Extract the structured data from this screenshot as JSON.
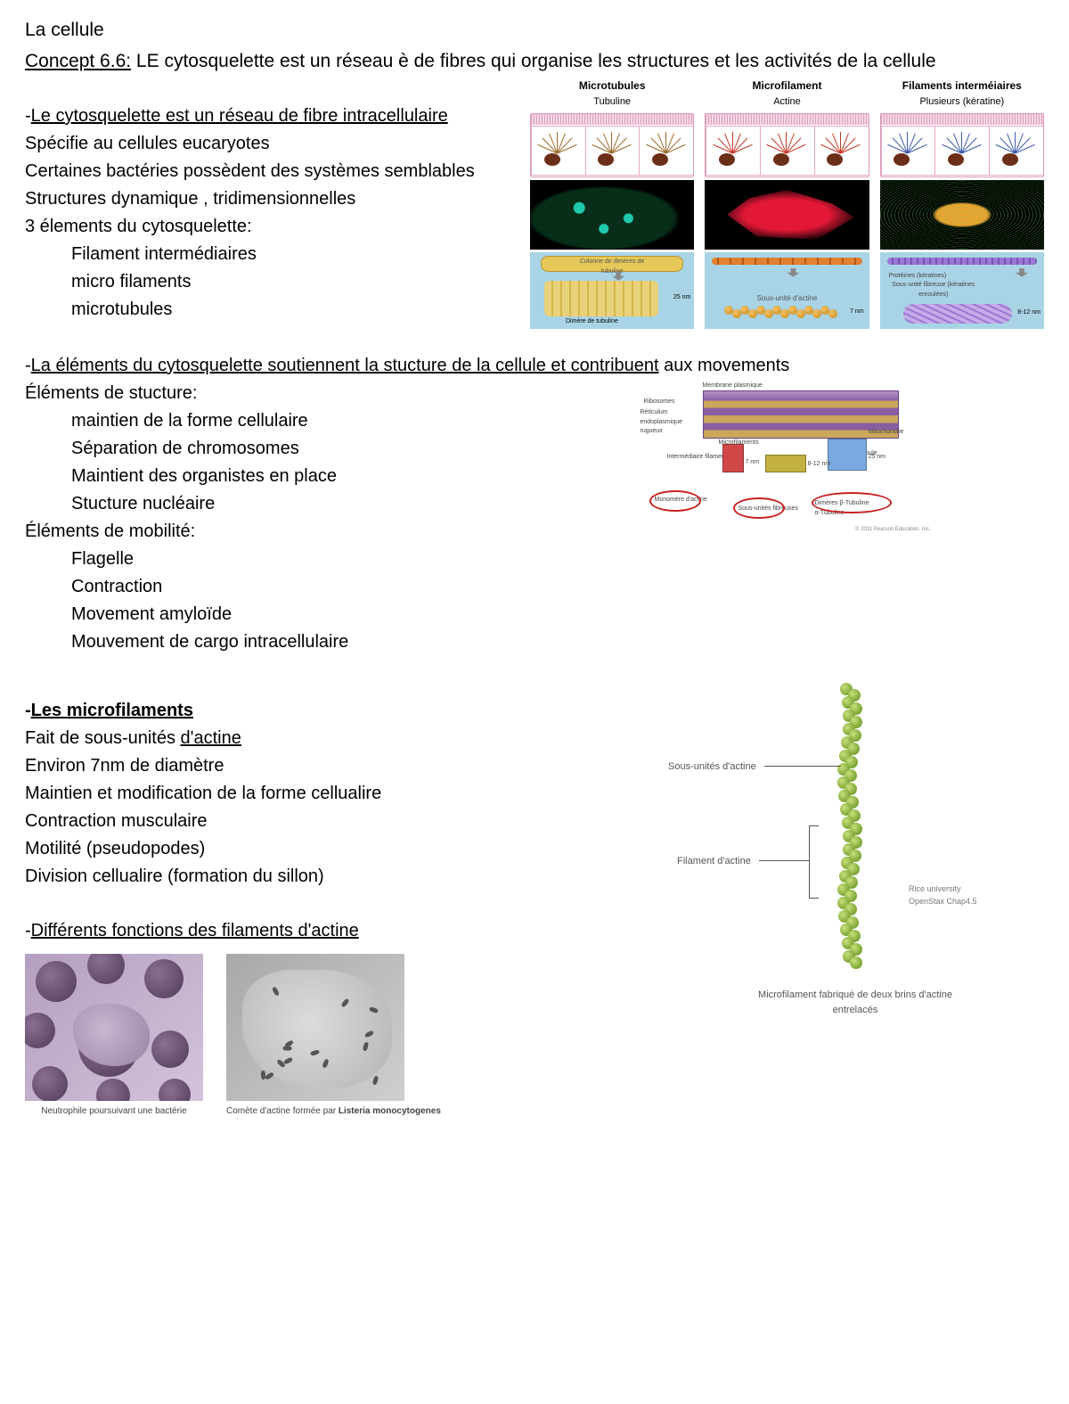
{
  "title": "La cellule",
  "concept": {
    "label": "Concept 6.6:",
    "text": " LE cytosquelette est un réseau è de fibres qui organise les structures et les activités de la cellule"
  },
  "s1": {
    "head": "Le cytosquelette est un réseau de fibre intracellulaire",
    "lines": [
      "Spécifie au cellules eucaryotes",
      "Certaines bactéries possèdent des systèmes semblables",
      "Structures dynamique , tridimensionnelles",
      "3 élements du cytosquelette:"
    ],
    "sub": [
      "Filament intermédiaires",
      "micro filaments",
      "microtubules"
    ]
  },
  "fig1": {
    "cols": [
      {
        "hd": "Microtubules",
        "sub": "Tubuline",
        "cell_accent": "#9a6a2a",
        "micro_color": "#1fd0c5",
        "diagram_fill": "#e6c85a",
        "diagram_labels": [
          "Colonne de dimères de tubuline",
          "25 nm",
          "Dimère de tubuline"
        ]
      },
      {
        "hd": "Microfilament",
        "sub": "Actine",
        "cell_accent": "#c43a2a",
        "micro_color": "#e31837",
        "diagram_fill": "#e6a531",
        "diagram_labels": [
          "Sous-unité d'actine",
          "7 nm"
        ]
      },
      {
        "hd": "Filaments interméiaires",
        "sub": "Plusieurs (kèratine)",
        "cell_accent": "#3b5aa8",
        "micro_color": "#56d84a",
        "diagram_fill": "#b79de0",
        "diagram_labels": [
          "Protéines (kératines)",
          "Sous-unité fibreuse (kératines enroulées)",
          "8-12 nm"
        ]
      }
    ]
  },
  "s2": {
    "head_u": "La éléments du cytosquelette soutiennent la stucture de la cellule et contribuent",
    "head_tail": " aux movements",
    "l1": "Éléments de stucture:",
    "sub1": [
      "maintien de la forme cellulaire",
      "Séparation de chromosomes",
      "Maintient des organistes en place",
      "Stucture nucléaire"
    ],
    "l2": "Éléments de mobilité:",
    "sub2": [
      "Flagelle",
      "Contraction",
      "Movement amyloïde",
      "Mouvement de cargo intracellulaire"
    ]
  },
  "fig2": {
    "labels": [
      "Membrane plasmique",
      "Ribosomes",
      "Réticulum endoplasmique rugueux",
      "Intermédiaire filament",
      "Microfilaments",
      "Microtubule",
      "Mitochondrie",
      "Monomère d'actine",
      "Sous-unités fibreuses",
      "Dimères β-Tubuline α-Tubuline"
    ],
    "dims": [
      "7 nm",
      "8-12 nm",
      "25 nm"
    ],
    "credit": "© 2011 Pearson Education, Inc."
  },
  "s3": {
    "head": "Les microfilaments",
    "lines": [
      "Fait de sous-unités ",
      " d'actine",
      "Environ 7nm de diamètre",
      "Maintien et modification de la forme cellualire",
      "Contraction musculaire",
      "Motilité (pseudopodes)",
      "Division cellualire (formation du sillon)"
    ]
  },
  "fig3": {
    "label_subunit": "Sous-unités d'actine",
    "label_filament": "Filament d'actine",
    "caption": "Microfilament fabriqué de deux brins d'actine entrelacés",
    "credit": "Rice university\nOpenStax Chap4.5",
    "bead_color_a": "#9bbf48",
    "bead_color_b": "#7ba434",
    "n_beads": 42
  },
  "s4": {
    "head": "Différents fonctions des filaments d'actine"
  },
  "bottom": {
    "cap1": "Neutrophile poursuivant une bactérie",
    "cap2_a": "Comète d'actine formée par ",
    "cap2_b": "Listeria monocytogenes"
  },
  "colors": {
    "text": "#000000",
    "bg": "#ffffff"
  }
}
